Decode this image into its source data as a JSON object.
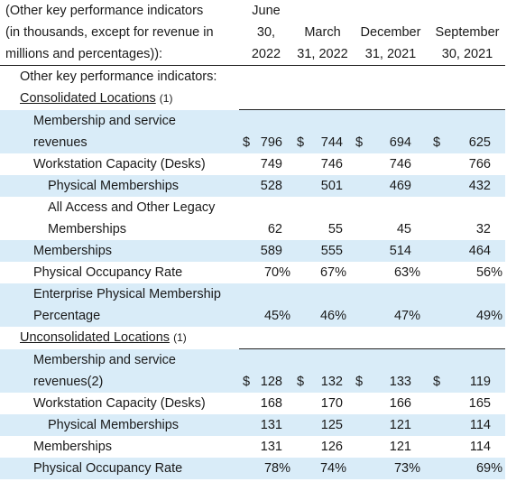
{
  "header": {
    "label_lines": [
      "(Other key performance indicators",
      "(in thousands, except for revenue in",
      "millions and percentages)):"
    ],
    "columns": [
      {
        "lines": [
          "June",
          "30,",
          "2022"
        ]
      },
      {
        "lines": [
          "",
          "March",
          "31, 2022"
        ]
      },
      {
        "lines": [
          "",
          "December",
          "31, 2021"
        ]
      },
      {
        "lines": [
          "",
          "September",
          "30, 2021"
        ]
      }
    ]
  },
  "section_title": "Other key performance indicators:",
  "consolidated": {
    "title": "Consolidated Locations",
    "note": "(1)",
    "rows": {
      "membership_rev_line1": "Membership and service",
      "membership_rev_line2": "revenues",
      "membership_rev": [
        "796",
        "744",
        "694",
        "625"
      ],
      "currency": "$",
      "workstation_label": "Workstation Capacity (Desks)",
      "workstation": [
        "749",
        "746",
        "746",
        "766"
      ],
      "physical_label": "Physical Memberships",
      "physical": [
        "528",
        "501",
        "469",
        "432"
      ],
      "allaccess_line1": "All Access and Other Legacy",
      "allaccess_line2": "Memberships",
      "allaccess": [
        "62",
        "55",
        "45",
        "32"
      ],
      "memberships_label": "Memberships",
      "memberships": [
        "589",
        "555",
        "514",
        "464"
      ],
      "occupancy_label": "Physical Occupancy Rate",
      "occupancy": [
        "70%",
        "67%",
        "63%",
        "56%"
      ],
      "enterprise_line1": "Enterprise Physical Membership",
      "enterprise_line2": "Percentage",
      "enterprise": [
        "45%",
        "46%",
        "47%",
        "49%"
      ]
    }
  },
  "unconsolidated": {
    "title": "Unconsolidated Locations",
    "note": "(1)",
    "rows": {
      "membership_rev_line1": "Membership and service",
      "membership_rev_line2": "revenues(2)",
      "membership_rev": [
        "128",
        "132",
        "133",
        "119"
      ],
      "currency": "$",
      "workstation_label": "Workstation Capacity (Desks)",
      "workstation": [
        "168",
        "170",
        "166",
        "165"
      ],
      "physical_label": "Physical Memberships",
      "physical": [
        "131",
        "125",
        "121",
        "114"
      ],
      "memberships_label": "Memberships",
      "memberships": [
        "131",
        "126",
        "121",
        "114"
      ],
      "occupancy_label": "Physical Occupancy Rate",
      "occupancy": [
        "78%",
        "74%",
        "73%",
        "69%"
      ]
    }
  }
}
